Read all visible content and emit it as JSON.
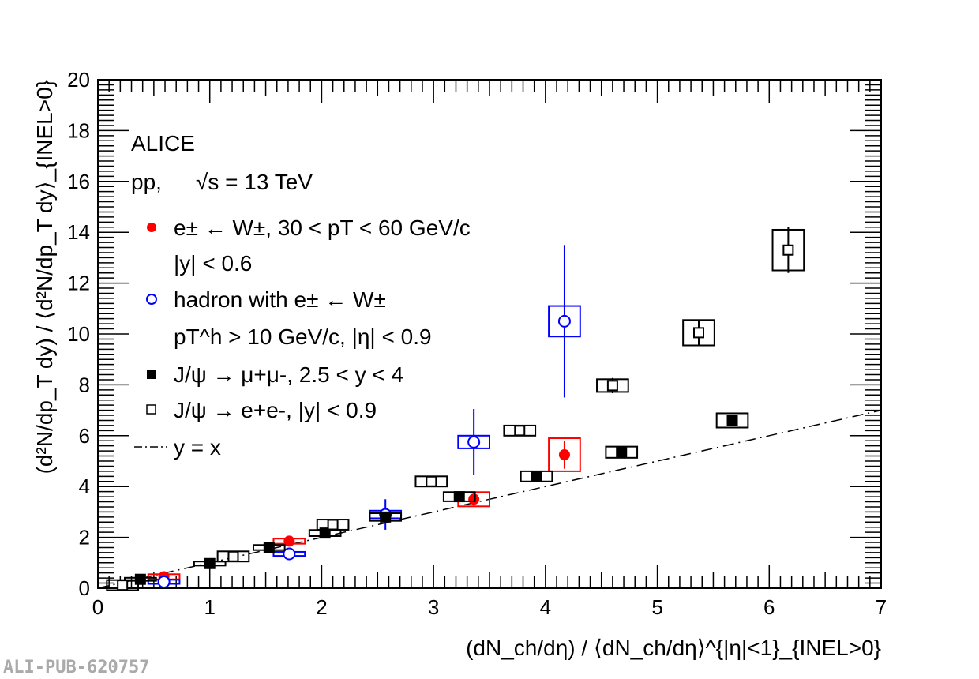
{
  "chart_data": {
    "type": "scatter",
    "xlabel": "(dN_ch/dη) / ⟨dN_ch/dη⟩^{|η|<1}_{INEL>0}",
    "ylabel": "(d²N/dp_T dy) / ⟨d²N/dp_T dy⟩_{INEL>0}",
    "xlim": [
      0,
      7
    ],
    "ylim": [
      0,
      20
    ],
    "xticks": [
      "0",
      "1",
      "2",
      "3",
      "4",
      "5",
      "6",
      "7"
    ],
    "yticks": [
      "0",
      "2",
      "4",
      "6",
      "8",
      "10",
      "12",
      "14",
      "16",
      "18",
      "20"
    ],
    "annotations": [
      "ALICE",
      "pp,",
      "√s = 13 TeV"
    ],
    "series": [
      {
        "name": "e± ← W±, 30 < pT < 60 GeV/c, |y| < 0.6",
        "color": "#ff0000",
        "marker": "filled-circle",
        "x": [
          0.59,
          1.71,
          3.36,
          4.17
        ],
        "y": [
          0.45,
          1.85,
          3.5,
          5.25
        ],
        "stat": [
          0.1,
          0.1,
          0.3,
          0.55
        ],
        "sys": [
          0.1,
          0.1,
          0.28,
          0.65
        ]
      },
      {
        "name": "hadron with e± ← W±, pT^h > 10 GeV/c, |η| < 0.9",
        "color": "#0000ff",
        "marker": "open-circle",
        "x": [
          0.59,
          1.71,
          2.57,
          3.36,
          4.17
        ],
        "y": [
          0.25,
          1.35,
          2.9,
          5.75,
          10.5
        ],
        "stat": [
          0.1,
          0.1,
          0.6,
          1.3,
          3.0
        ],
        "sys": [
          0.08,
          0.08,
          0.15,
          0.25,
          0.6
        ]
      },
      {
        "name": "J/ψ → μ+μ-, 2.5 < y < 4",
        "color": "#000000",
        "marker": "filled-square",
        "x": [
          0.38,
          1.0,
          1.53,
          2.03,
          2.57,
          3.23,
          3.92,
          4.68,
          5.67
        ],
        "y": [
          0.35,
          0.97,
          1.6,
          2.17,
          2.8,
          3.6,
          4.4,
          5.35,
          6.6
        ],
        "stat": [
          0.05,
          0.05,
          0.05,
          0.05,
          0.06,
          0.08,
          0.1,
          0.12,
          0.15
        ],
        "sys": [
          0.06,
          0.08,
          0.1,
          0.12,
          0.15,
          0.18,
          0.2,
          0.22,
          0.28
        ]
      },
      {
        "name": "J/ψ → e+e-, |y| < 0.9",
        "color": "#000000",
        "marker": "open-square",
        "x": [
          0.22,
          1.21,
          2.1,
          2.98,
          3.77,
          4.6,
          5.37,
          6.17
        ],
        "y": [
          0.12,
          1.25,
          2.5,
          4.2,
          6.2,
          7.97,
          10.05,
          13.3
        ],
        "stat": [
          0.1,
          0.1,
          0.15,
          0.15,
          0.2,
          0.3,
          0.5,
          0.9
        ],
        "sys": [
          0.2,
          0.2,
          0.2,
          0.2,
          0.2,
          0.25,
          0.5,
          0.8
        ]
      },
      {
        "name": "y = x",
        "color": "#000000",
        "marker": "dash-dot-line"
      }
    ],
    "legend": {
      "placement": "top-left",
      "entries": [
        {
          "line1": "e± ← W±, 30 < pT < 60 GeV/c",
          "line2": "|y| < 0.6"
        },
        {
          "line1": "hadron with e± ← W±",
          "line2": "pT^h > 10 GeV/c, |η| < 0.9"
        },
        {
          "line1": "J/ψ → μ+μ-, 2.5 < y < 4"
        },
        {
          "line1": "J/ψ → e+e-, |y| < 0.9"
        },
        {
          "line1": "y = x"
        }
      ]
    }
  },
  "watermark": "ALI-PUB-620757"
}
